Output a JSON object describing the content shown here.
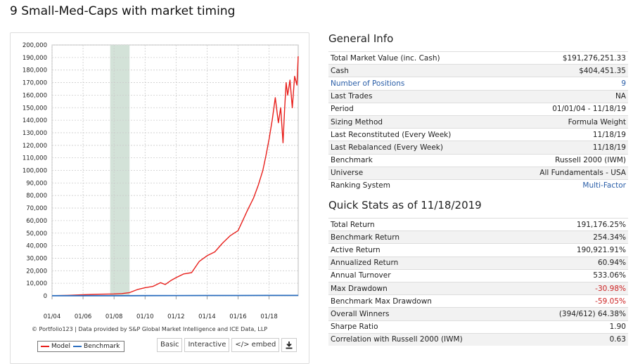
{
  "page_title": "9 Small-Med-Caps with market timing",
  "chart": {
    "footer": "© Portfolio123 | Data provided by S&P Global Market Intelligence and ICE Data, LLP",
    "buttons": {
      "basic": "Basic",
      "interactive": "Interactive",
      "embed": "</> embed",
      "download_icon": "download-icon"
    }
  },
  "chart_data": {
    "type": "line",
    "title": "",
    "xlabel": "",
    "ylabel": "",
    "ylim": [
      0,
      200000
    ],
    "yticks": [
      0,
      10000,
      20000,
      30000,
      40000,
      50000,
      60000,
      70000,
      80000,
      90000,
      100000,
      110000,
      120000,
      130000,
      140000,
      150000,
      160000,
      170000,
      180000,
      190000,
      200000
    ],
    "ytick_labels": [
      "0",
      "10,000",
      "20,000",
      "30,000",
      "40,000",
      "50,000",
      "60,000",
      "70,000",
      "80,000",
      "90,000",
      "100,000",
      "110,000",
      "120,000",
      "130,000",
      "140,000",
      "150,000",
      "160,000",
      "170,000",
      "180,000",
      "190,000",
      "200,000"
    ],
    "xlim": [
      2004.0,
      2019.88
    ],
    "xticks": [
      2004,
      2006,
      2008,
      2010,
      2012,
      2014,
      2016,
      2018
    ],
    "xtick_labels": [
      "01/04",
      "01/06",
      "01/08",
      "01/10",
      "01/12",
      "01/14",
      "01/16",
      "01/18"
    ],
    "shaded_region": [
      2007.75,
      2009.0
    ],
    "grid": true,
    "legend_position": "bottom-left",
    "series": [
      {
        "name": "Model",
        "color": "#e8201c",
        "x": [
          2004.0,
          2005.0,
          2006.0,
          2007.0,
          2008.0,
          2008.5,
          2009.0,
          2009.5,
          2010.0,
          2010.5,
          2011.0,
          2011.3,
          2011.7,
          2012.0,
          2012.5,
          2013.0,
          2013.5,
          2014.0,
          2014.5,
          2015.0,
          2015.5,
          2016.0,
          2016.3,
          2016.6,
          2017.0,
          2017.3,
          2017.6,
          2017.8,
          2018.0,
          2018.2,
          2018.4,
          2018.6,
          2018.75,
          2018.9,
          2019.0,
          2019.1,
          2019.2,
          2019.35,
          2019.5,
          2019.65,
          2019.8,
          2019.88
        ],
        "values": [
          100,
          400,
          900,
          1300,
          1500,
          1800,
          2600,
          5000,
          6500,
          7500,
          10500,
          9000,
          12500,
          14500,
          17500,
          18500,
          27500,
          32000,
          35000,
          42000,
          48000,
          52000,
          60000,
          68000,
          78000,
          88000,
          100000,
          112000,
          125000,
          140000,
          158000,
          138000,
          150000,
          122000,
          148000,
          170000,
          160000,
          172000,
          150000,
          175000,
          168000,
          191000
        ]
      },
      {
        "name": "Benchmark",
        "color": "#2c6fbf",
        "x": [
          2004.0,
          2006.0,
          2008.0,
          2009.0,
          2010.0,
          2012.0,
          2014.0,
          2016.0,
          2018.0,
          2019.0,
          2019.88
        ],
        "values": [
          100,
          120,
          140,
          100,
          150,
          200,
          260,
          300,
          330,
          320,
          354
        ]
      }
    ]
  },
  "general_info": {
    "title": "General Info",
    "rows": [
      {
        "label": "Total Market Value (inc. Cash)",
        "value": "$191,276,251.33"
      },
      {
        "label": "Cash",
        "value": "$404,451.35"
      },
      {
        "label": "Number of Positions",
        "value": "9"
      },
      {
        "label": "Last Trades",
        "value": "NA"
      },
      {
        "label": "Period",
        "value": "01/01/04 - 11/18/19"
      },
      {
        "label": "Sizing Method",
        "value": "Formula Weight"
      },
      {
        "label": "Last Reconstituted (Every Week)",
        "value": "11/18/19"
      },
      {
        "label": "Last Rebalanced (Every Week)",
        "value": "11/18/19"
      },
      {
        "label": "Benchmark",
        "value": "Russell 2000 (IWM)"
      },
      {
        "label": "Universe",
        "value": "All Fundamentals - USA"
      },
      {
        "label": "Ranking System",
        "value": "Multi-Factor"
      }
    ]
  },
  "quick_stats": {
    "title": "Quick Stats as of 11/18/2019",
    "rows": [
      {
        "label": "Total Return",
        "value": "191,176.25%"
      },
      {
        "label": "Benchmark Return",
        "value": "254.34%"
      },
      {
        "label": "Active Return",
        "value": "190,921.91%"
      },
      {
        "label": "Annualized Return",
        "value": "60.94%"
      },
      {
        "label": "Annual Turnover",
        "value": "533.06%"
      },
      {
        "label": "Max Drawdown",
        "value": "-30.98%"
      },
      {
        "label": "Benchmark Max Drawdown",
        "value": "-59.05%"
      },
      {
        "label": "Overall Winners",
        "value": "(394/612) 64.38%"
      },
      {
        "label": "Sharpe Ratio",
        "value": "1.90"
      },
      {
        "label": "Correlation with Russell 2000 (IWM)",
        "value": "0.63"
      }
    ]
  }
}
